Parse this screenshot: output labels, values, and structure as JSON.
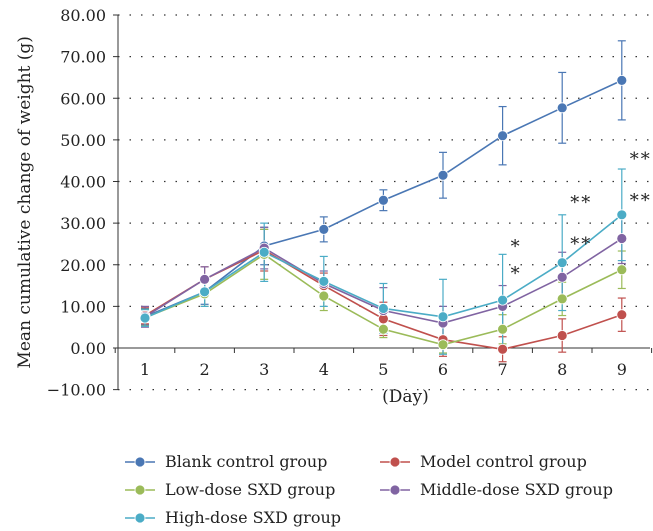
{
  "chart_data": {
    "type": "line",
    "title": "",
    "xlabel": "(Day)",
    "ylabel": "Mean cumulative change of weight (g)",
    "x": [
      1,
      2,
      3,
      4,
      5,
      6,
      7,
      8,
      9
    ],
    "xticks": [
      "1",
      "2",
      "3",
      "4",
      "5",
      "6",
      "7",
      "8",
      "9"
    ],
    "yticks": [
      "−10.00",
      "0.00",
      "10.00",
      "20.00",
      "30.00",
      "40.00",
      "50.00",
      "60.00",
      "70.00",
      "80.00"
    ],
    "ylim": [
      -10,
      80
    ],
    "grid": "dotted horizontal",
    "legend_position": "bottom",
    "series": [
      {
        "name": "Blank control group",
        "color": "#4a77b4",
        "values": [
          7.5,
          13.5,
          24.5,
          28.5,
          35.5,
          41.5,
          51,
          57.7,
          64.3
        ],
        "errors": [
          2,
          3,
          4.5,
          3,
          2.5,
          5.5,
          7,
          8.5,
          9.5
        ]
      },
      {
        "name": "Model control group",
        "color": "#c0504d",
        "values": [
          7.8,
          16.5,
          23.5,
          15,
          7,
          2,
          -0.3,
          3,
          8
        ],
        "errors": [
          2,
          3,
          5,
          3,
          4,
          4,
          3,
          4,
          4
        ]
      },
      {
        "name": "Low-dose SXD group",
        "color": "#9bbb59",
        "values": [
          7.3,
          13,
          22.5,
          12.5,
          4.5,
          0.8,
          4.5,
          11.8,
          18.8
        ],
        "errors": [
          2,
          3,
          6,
          3.5,
          2,
          2,
          3.5,
          4,
          4.5
        ]
      },
      {
        "name": "Middle-dose SXD group",
        "color": "#8064a2",
        "values": [
          7.5,
          16.5,
          24,
          15.5,
          9,
          6,
          10,
          17,
          26.3
        ],
        "errors": [
          2.5,
          3,
          5,
          3,
          5.5,
          4,
          5,
          6,
          6
        ]
      },
      {
        "name": "High-dose SXD group",
        "color": "#4bacc6",
        "values": [
          7.2,
          13.5,
          23,
          16,
          9.5,
          7.5,
          11.5,
          20.5,
          32
        ],
        "errors": [
          2,
          3.5,
          7,
          6,
          6,
          9,
          11,
          11.5,
          11
        ]
      }
    ],
    "annotations": [
      {
        "x": 7,
        "y": 23,
        "text": "*"
      },
      {
        "x": 7,
        "y": 16.5,
        "text": "*"
      },
      {
        "x": 8,
        "y": 33.5,
        "text": "**"
      },
      {
        "x": 8,
        "y": 23.5,
        "text": "**"
      },
      {
        "x": 9,
        "y": 44,
        "text": "**"
      },
      {
        "x": 9,
        "y": 34,
        "text": "**"
      }
    ]
  }
}
